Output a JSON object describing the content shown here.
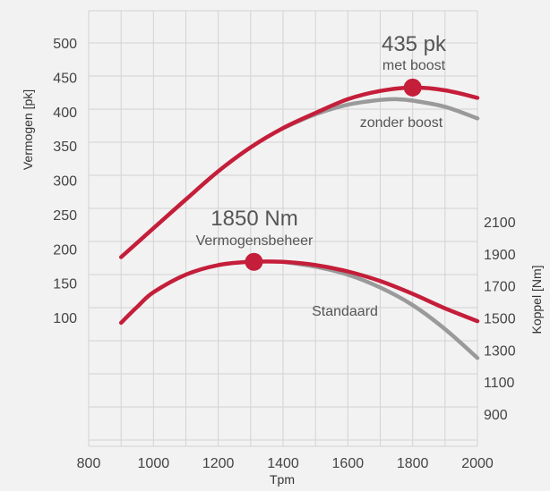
{
  "chart_data": {
    "type": "line",
    "xlabel": "Tpm",
    "xlim": [
      800,
      2000
    ],
    "x_ticks": [
      "800",
      "1000",
      "1200",
      "1400",
      "1600",
      "1800",
      "2000"
    ],
    "y_left": {
      "label": "Vermogen [pk]",
      "ticks": [
        "100",
        "150",
        "200",
        "250",
        "300",
        "350",
        "400",
        "450",
        "500"
      ]
    },
    "y_right": {
      "label": "Koppel [Nm]",
      "ticks": [
        "900",
        "1100",
        "1300",
        "1500",
        "1700",
        "1900",
        "2100"
      ]
    },
    "grid": true,
    "series": [
      {
        "name": "met boost",
        "axis": "left",
        "color": "#c41e3a",
        "points": [
          [
            900,
            188
          ],
          [
            1000,
            230
          ],
          [
            1100,
            272
          ],
          [
            1200,
            313
          ],
          [
            1300,
            348
          ],
          [
            1400,
            376
          ],
          [
            1500,
            398
          ],
          [
            1600,
            418
          ],
          [
            1700,
            430
          ],
          [
            1800,
            435
          ],
          [
            1900,
            431
          ],
          [
            2000,
            420
          ]
        ]
      },
      {
        "name": "zonder boost",
        "axis": "left",
        "color": "#9a9a9a",
        "points": [
          [
            1400,
            376
          ],
          [
            1500,
            396
          ],
          [
            1600,
            410
          ],
          [
            1700,
            417
          ],
          [
            1750,
            418
          ],
          [
            1800,
            416
          ],
          [
            1900,
            407
          ],
          [
            2000,
            390
          ]
        ]
      },
      {
        "name": "Vermogensbeheer",
        "axis": "right",
        "color": "#c41e3a",
        "points": [
          [
            900,
            1470
          ],
          [
            950,
            1570
          ],
          [
            1000,
            1660
          ],
          [
            1100,
            1770
          ],
          [
            1200,
            1830
          ],
          [
            1300,
            1850
          ],
          [
            1400,
            1850
          ],
          [
            1500,
            1830
          ],
          [
            1600,
            1790
          ],
          [
            1700,
            1730
          ],
          [
            1800,
            1650
          ],
          [
            1900,
            1560
          ],
          [
            2000,
            1480
          ]
        ]
      },
      {
        "name": "Standaard",
        "axis": "right",
        "color": "#9a9a9a",
        "points": [
          [
            1400,
            1850
          ],
          [
            1500,
            1820
          ],
          [
            1600,
            1770
          ],
          [
            1700,
            1690
          ],
          [
            1800,
            1580
          ],
          [
            1900,
            1430
          ],
          [
            2000,
            1250
          ]
        ]
      }
    ],
    "annotations": [
      {
        "value_text": "435 pk",
        "label": "met boost",
        "x": 1800,
        "y": 435,
        "axis": "left"
      },
      {
        "value_text": "1850 Nm",
        "label": "Vermogensbeheer",
        "x": 1310,
        "y": 1850,
        "axis": "right"
      },
      {
        "label": "zonder boost"
      },
      {
        "label": "Standaard"
      }
    ]
  }
}
